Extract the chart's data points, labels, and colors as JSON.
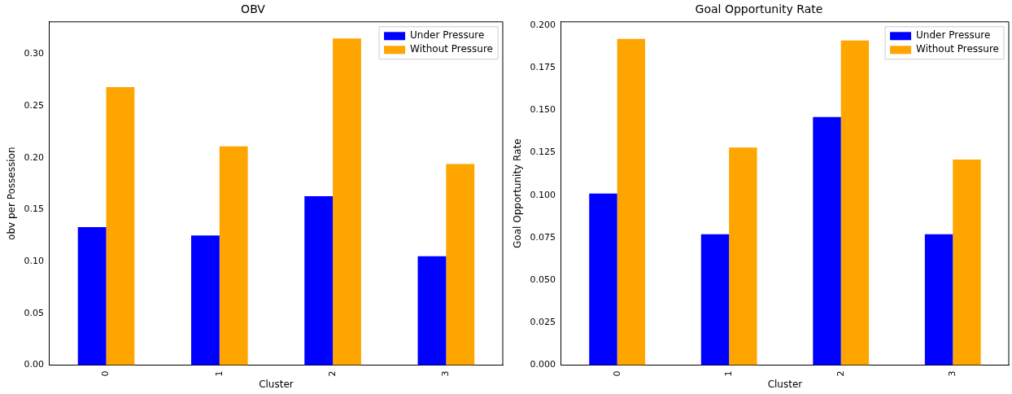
{
  "chart_data": [
    {
      "type": "bar",
      "title": "OBV",
      "xlabel": "Cluster",
      "ylabel": "obv per Possession",
      "categories": [
        "0",
        "1",
        "2",
        "3"
      ],
      "series": [
        {
          "name": "Under Pressure",
          "color": "#0000ff",
          "values": [
            0.133,
            0.125,
            0.163,
            0.105
          ]
        },
        {
          "name": "Without Pressure",
          "color": "#ffa500",
          "values": [
            0.268,
            0.211,
            0.315,
            0.194
          ]
        }
      ],
      "ylim": [
        0,
        0.331
      ],
      "yticks": [
        {
          "value": 0,
          "label": "0.00"
        },
        0.05,
        {
          "value": 0.1,
          "label": "0.10"
        },
        0.15,
        {
          "value": 0.2,
          "label": "0.20"
        },
        0.25,
        {
          "value": 0.3,
          "label": "0.30"
        }
      ],
      "grid": false,
      "legend": "top right"
    },
    {
      "type": "bar",
      "title": "Goal Opportunity Rate",
      "xlabel": "Cluster",
      "ylabel": "Goal Opportunity Rate",
      "categories": [
        "0",
        "1",
        "2",
        "3"
      ],
      "series": [
        {
          "name": "Under Pressure",
          "color": "#0000ff",
          "values": [
            0.101,
            0.077,
            0.146,
            0.077
          ]
        },
        {
          "name": "Without Pressure",
          "color": "#ffa500",
          "values": [
            0.192,
            0.128,
            0.191,
            0.121
          ]
        }
      ],
      "ylim": [
        0,
        0.202
      ],
      "yticks": [
        {
          "value": 0,
          "label": "0.000"
        },
        0.025,
        {
          "value": 0.05,
          "label": "0.050"
        },
        0.075,
        {
          "value": 0.1,
          "label": "0.100"
        },
        0.125,
        {
          "value": 0.15,
          "label": "0.150"
        },
        0.175,
        {
          "value": 0.2,
          "label": "0.200"
        }
      ],
      "grid": false,
      "legend": "top right"
    }
  ]
}
